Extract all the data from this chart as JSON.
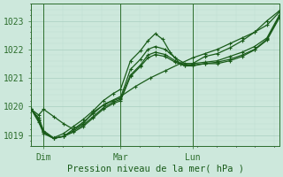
{
  "title": "",
  "xlabel": "Pression niveau de la mer( hPa )",
  "ylabel": "",
  "bg_color": "#cde8dc",
  "plot_bg_color": "#cde8dc",
  "grid_major_color": "#a8cfc0",
  "grid_minor_color": "#bdddd0",
  "line_color": "#1a5c1a",
  "marker_color": "#1a5c1a",
  "axis_color": "#2d6e2d",
  "tick_color": "#2d6e2d",
  "label_color": "#1a5c1a",
  "ylim": [
    1018.6,
    1023.6
  ],
  "yticks": [
    1019,
    1020,
    1021,
    1022,
    1023
  ],
  "xtick_labels": [
    "Dim",
    "Mar",
    "Lun"
  ],
  "xtick_positions": [
    0.05,
    0.36,
    0.65
  ],
  "vline_positions": [
    0.05,
    0.36,
    0.65
  ],
  "series": [
    {
      "x": [
        0.0,
        0.03,
        0.05,
        0.09,
        0.13,
        0.17,
        0.21,
        0.25,
        0.3,
        0.36,
        0.42,
        0.48,
        0.54,
        0.6,
        0.65,
        0.7,
        0.75,
        0.8,
        0.85,
        0.9,
        0.95,
        1.0
      ],
      "y": [
        1019.9,
        1019.7,
        1019.9,
        1019.65,
        1019.4,
        1019.2,
        1019.4,
        1019.8,
        1020.1,
        1020.35,
        1020.7,
        1021.0,
        1021.25,
        1021.5,
        1021.7,
        1021.85,
        1022.0,
        1022.2,
        1022.4,
        1022.6,
        1022.85,
        1023.3
      ]
    },
    {
      "x": [
        0.0,
        0.03,
        0.05,
        0.09,
        0.13,
        0.17,
        0.21,
        0.25,
        0.29,
        0.33,
        0.36,
        0.4,
        0.44,
        0.47,
        0.5,
        0.53,
        0.56,
        0.6,
        0.65,
        0.7,
        0.75,
        0.8,
        0.85,
        0.9,
        0.95,
        1.0
      ],
      "y": [
        1019.9,
        1019.6,
        1019.15,
        1018.9,
        1019.05,
        1019.3,
        1019.55,
        1019.85,
        1020.2,
        1020.45,
        1020.6,
        1021.6,
        1021.95,
        1022.3,
        1022.55,
        1022.35,
        1021.9,
        1021.5,
        1021.5,
        1021.75,
        1021.85,
        1022.05,
        1022.3,
        1022.6,
        1023.0,
        1023.35
      ]
    },
    {
      "x": [
        0.0,
        0.03,
        0.05,
        0.09,
        0.13,
        0.17,
        0.21,
        0.25,
        0.29,
        0.33,
        0.36,
        0.4,
        0.44,
        0.47,
        0.5,
        0.54,
        0.58,
        0.62,
        0.65,
        0.7,
        0.75,
        0.8,
        0.85,
        0.9,
        0.95,
        1.0
      ],
      "y": [
        1019.9,
        1019.55,
        1019.1,
        1018.88,
        1018.95,
        1019.2,
        1019.45,
        1019.75,
        1020.05,
        1020.2,
        1020.3,
        1021.3,
        1021.65,
        1022.0,
        1022.1,
        1022.0,
        1021.7,
        1021.5,
        1021.5,
        1021.55,
        1021.6,
        1021.75,
        1021.9,
        1022.1,
        1022.4,
        1023.2
      ]
    },
    {
      "x": [
        0.0,
        0.03,
        0.05,
        0.09,
        0.13,
        0.17,
        0.21,
        0.25,
        0.29,
        0.33,
        0.36,
        0.4,
        0.44,
        0.47,
        0.5,
        0.54,
        0.58,
        0.62,
        0.65,
        0.7,
        0.75,
        0.8,
        0.85,
        0.9,
        0.95,
        1.0
      ],
      "y": [
        1019.9,
        1019.5,
        1019.1,
        1018.88,
        1018.95,
        1019.15,
        1019.35,
        1019.65,
        1019.95,
        1020.15,
        1020.25,
        1021.1,
        1021.45,
        1021.8,
        1021.9,
        1021.82,
        1021.6,
        1021.45,
        1021.45,
        1021.5,
        1021.55,
        1021.65,
        1021.8,
        1022.0,
        1022.35,
        1023.15
      ]
    },
    {
      "x": [
        0.0,
        0.03,
        0.05,
        0.09,
        0.13,
        0.17,
        0.21,
        0.25,
        0.29,
        0.33,
        0.36,
        0.4,
        0.44,
        0.47,
        0.5,
        0.54,
        0.58,
        0.62,
        0.65,
        0.7,
        0.75,
        0.8,
        0.85,
        0.9,
        0.95,
        1.0
      ],
      "y": [
        1019.9,
        1019.45,
        1019.05,
        1018.88,
        1018.95,
        1019.1,
        1019.3,
        1019.6,
        1019.9,
        1020.1,
        1020.2,
        1021.05,
        1021.4,
        1021.7,
        1021.82,
        1021.75,
        1021.55,
        1021.42,
        1021.42,
        1021.5,
        1021.5,
        1021.6,
        1021.75,
        1021.98,
        1022.32,
        1023.1
      ]
    }
  ]
}
